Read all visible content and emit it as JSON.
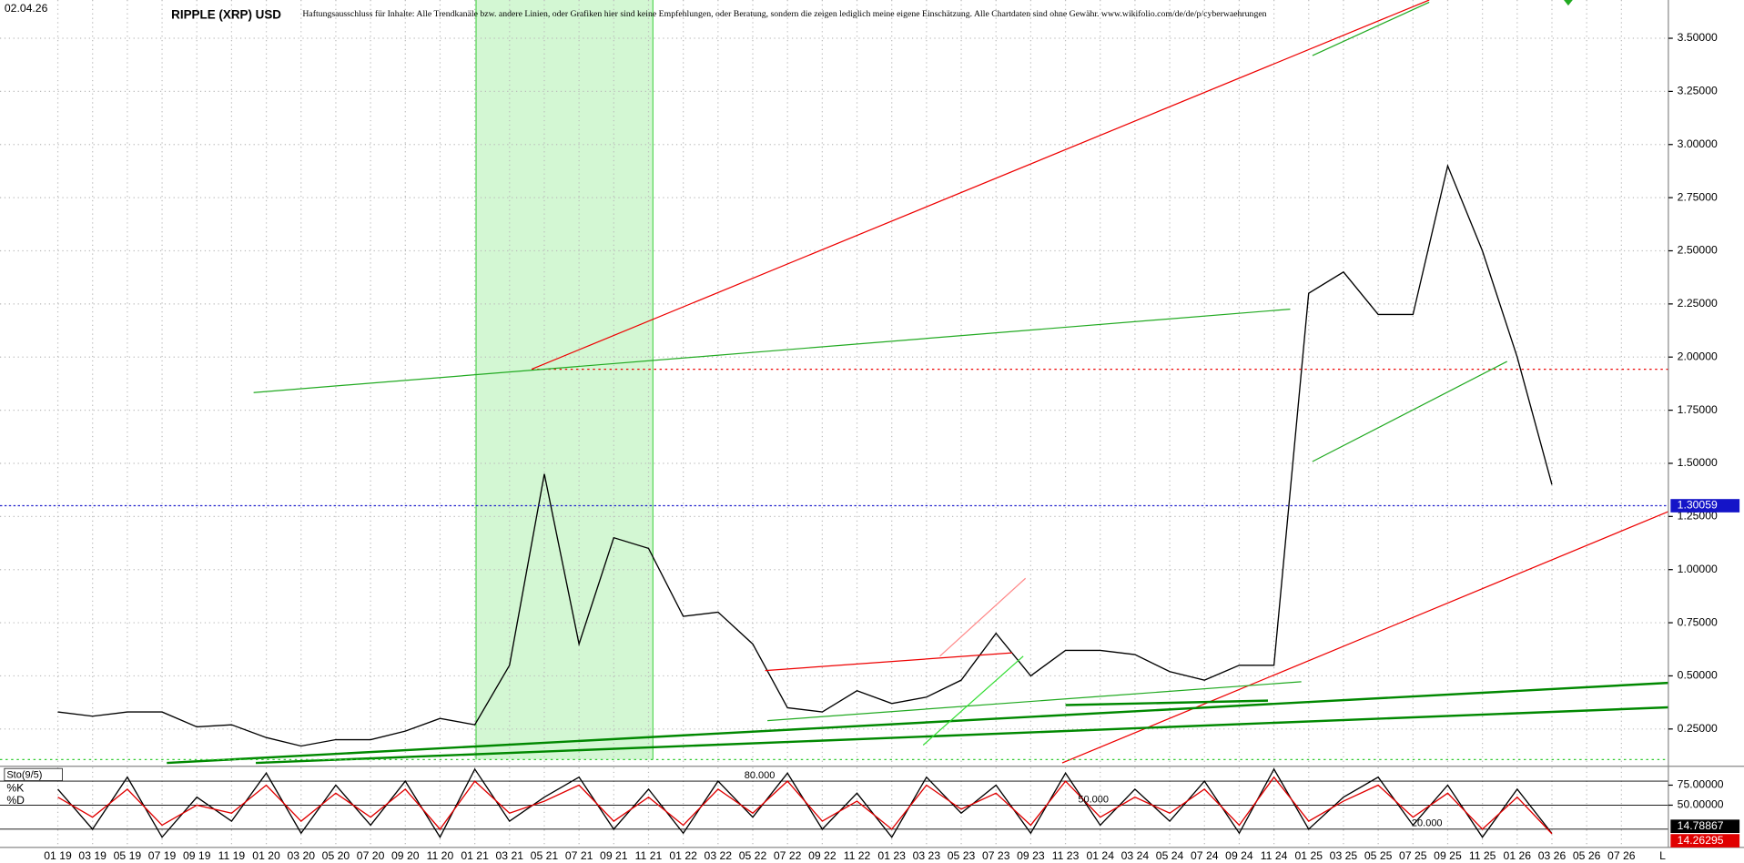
{
  "header": {
    "date": "02.04.26",
    "title": "RIPPLE (XRP) USD",
    "disclaimer": "Haftungsausschluss für Inhalte: Alle Trendkanäle bzw. andere Linien, oder Grafiken hier sind keine Empfehlungen, oder Beratung, sondern die zeigen lediglich meine eigene Einschätzung. Alle Chartdaten sind ohne Gewähr.  www.wikifolio.com/de/de/p/cyberwaehrungen",
    "axis_end_label": "L"
  },
  "chart_data": [
    {
      "type": "line",
      "categories": [
        "01 19",
        "03 19",
        "05 19",
        "07 19",
        "09 19",
        "11 19",
        "01 20",
        "03 20",
        "05 20",
        "07 20",
        "09 20",
        "11 20",
        "01 21",
        "03 21",
        "05 21",
        "07 21",
        "09 21",
        "11 21",
        "01 22",
        "03 22",
        "05 22",
        "07 22",
        "09 22",
        "11 22",
        "01 23",
        "03 23",
        "05 23",
        "07 23",
        "09 23",
        "11 23",
        "01 24",
        "03 24",
        "05 24",
        "07 24",
        "09 24",
        "11 24",
        "01 25",
        "03 25",
        "05 25",
        "07 25",
        "09 25",
        "11 25",
        "01 26",
        "03 26",
        "05 26",
        "07 26"
      ],
      "series": [
        {
          "name": "RIPPLE (XRP) USD",
          "color": "#000000",
          "values": [
            0.33,
            0.31,
            0.33,
            0.33,
            0.26,
            0.27,
            0.21,
            0.17,
            0.2,
            0.2,
            0.24,
            0.3,
            0.27,
            0.55,
            1.45,
            0.65,
            1.15,
            1.1,
            0.78,
            0.8,
            0.65,
            0.35,
            0.33,
            0.43,
            0.37,
            0.4,
            0.48,
            0.7,
            0.5,
            0.62,
            0.62,
            0.6,
            0.52,
            0.48,
            0.55,
            0.55,
            2.3,
            2.4,
            2.2,
            2.2,
            2.9,
            2.5,
            2.0,
            1.4,
            null,
            null
          ],
          "last_value": 1.30059
        }
      ],
      "ylim": [
        0.08,
        3.68
      ],
      "yticks": [
        {
          "value": 0.25,
          "label": "0.25000"
        },
        {
          "value": 0.5,
          "label": "0.50000"
        },
        {
          "value": 0.75,
          "label": "0.75000"
        },
        {
          "value": 1.0,
          "label": "1.00000"
        },
        {
          "value": 1.25,
          "label": "1.25000"
        },
        {
          "value": 1.5,
          "label": "1.50000"
        },
        {
          "value": 1.75,
          "label": "1.75000"
        },
        {
          "value": 2.0,
          "label": "2.00000"
        },
        {
          "value": 2.25,
          "label": "2.25000"
        },
        {
          "value": 2.5,
          "label": "2.50000"
        },
        {
          "value": 2.75,
          "label": "2.75000"
        },
        {
          "value": 3.0,
          "label": "3.00000"
        },
        {
          "value": 3.25,
          "label": "3.25000"
        },
        {
          "value": 3.5,
          "label": "3.50000"
        }
      ],
      "grid": true
    },
    {
      "type": "line",
      "title": "Sto(9/5)",
      "series": [
        {
          "name": "%K",
          "color": "#000000",
          "values": [
            70,
            20,
            85,
            10,
            60,
            30,
            90,
            15,
            75,
            25,
            80,
            10,
            95,
            30,
            60,
            85,
            20,
            70,
            15,
            80,
            35,
            90,
            20,
            65,
            10,
            85,
            40,
            75,
            15,
            90,
            25,
            70,
            30,
            80,
            15,
            95,
            20,
            60,
            85,
            25,
            75,
            10,
            70,
            14.79,
            null,
            null
          ],
          "last_value": 14.78867
        },
        {
          "name": "%D",
          "color": "#e00000",
          "values": [
            60,
            35,
            70,
            25,
            50,
            40,
            75,
            30,
            65,
            35,
            70,
            20,
            80,
            40,
            55,
            75,
            30,
            60,
            25,
            70,
            40,
            80,
            30,
            55,
            20,
            75,
            45,
            65,
            25,
            80,
            35,
            60,
            40,
            70,
            25,
            85,
            30,
            55,
            75,
            35,
            65,
            20,
            60,
            14.26,
            null,
            null
          ],
          "last_value": 14.26295
        }
      ],
      "ylim": [
        0,
        100
      ],
      "yticks": [
        {
          "value": 50,
          "label": "50.00000"
        },
        {
          "value": 75,
          "label": "75.00000"
        }
      ],
      "levels": [
        {
          "value": 80,
          "label": "80.000"
        },
        {
          "value": 50,
          "label": "50.000"
        },
        {
          "value": 20,
          "label": "20.000"
        }
      ]
    }
  ]
}
